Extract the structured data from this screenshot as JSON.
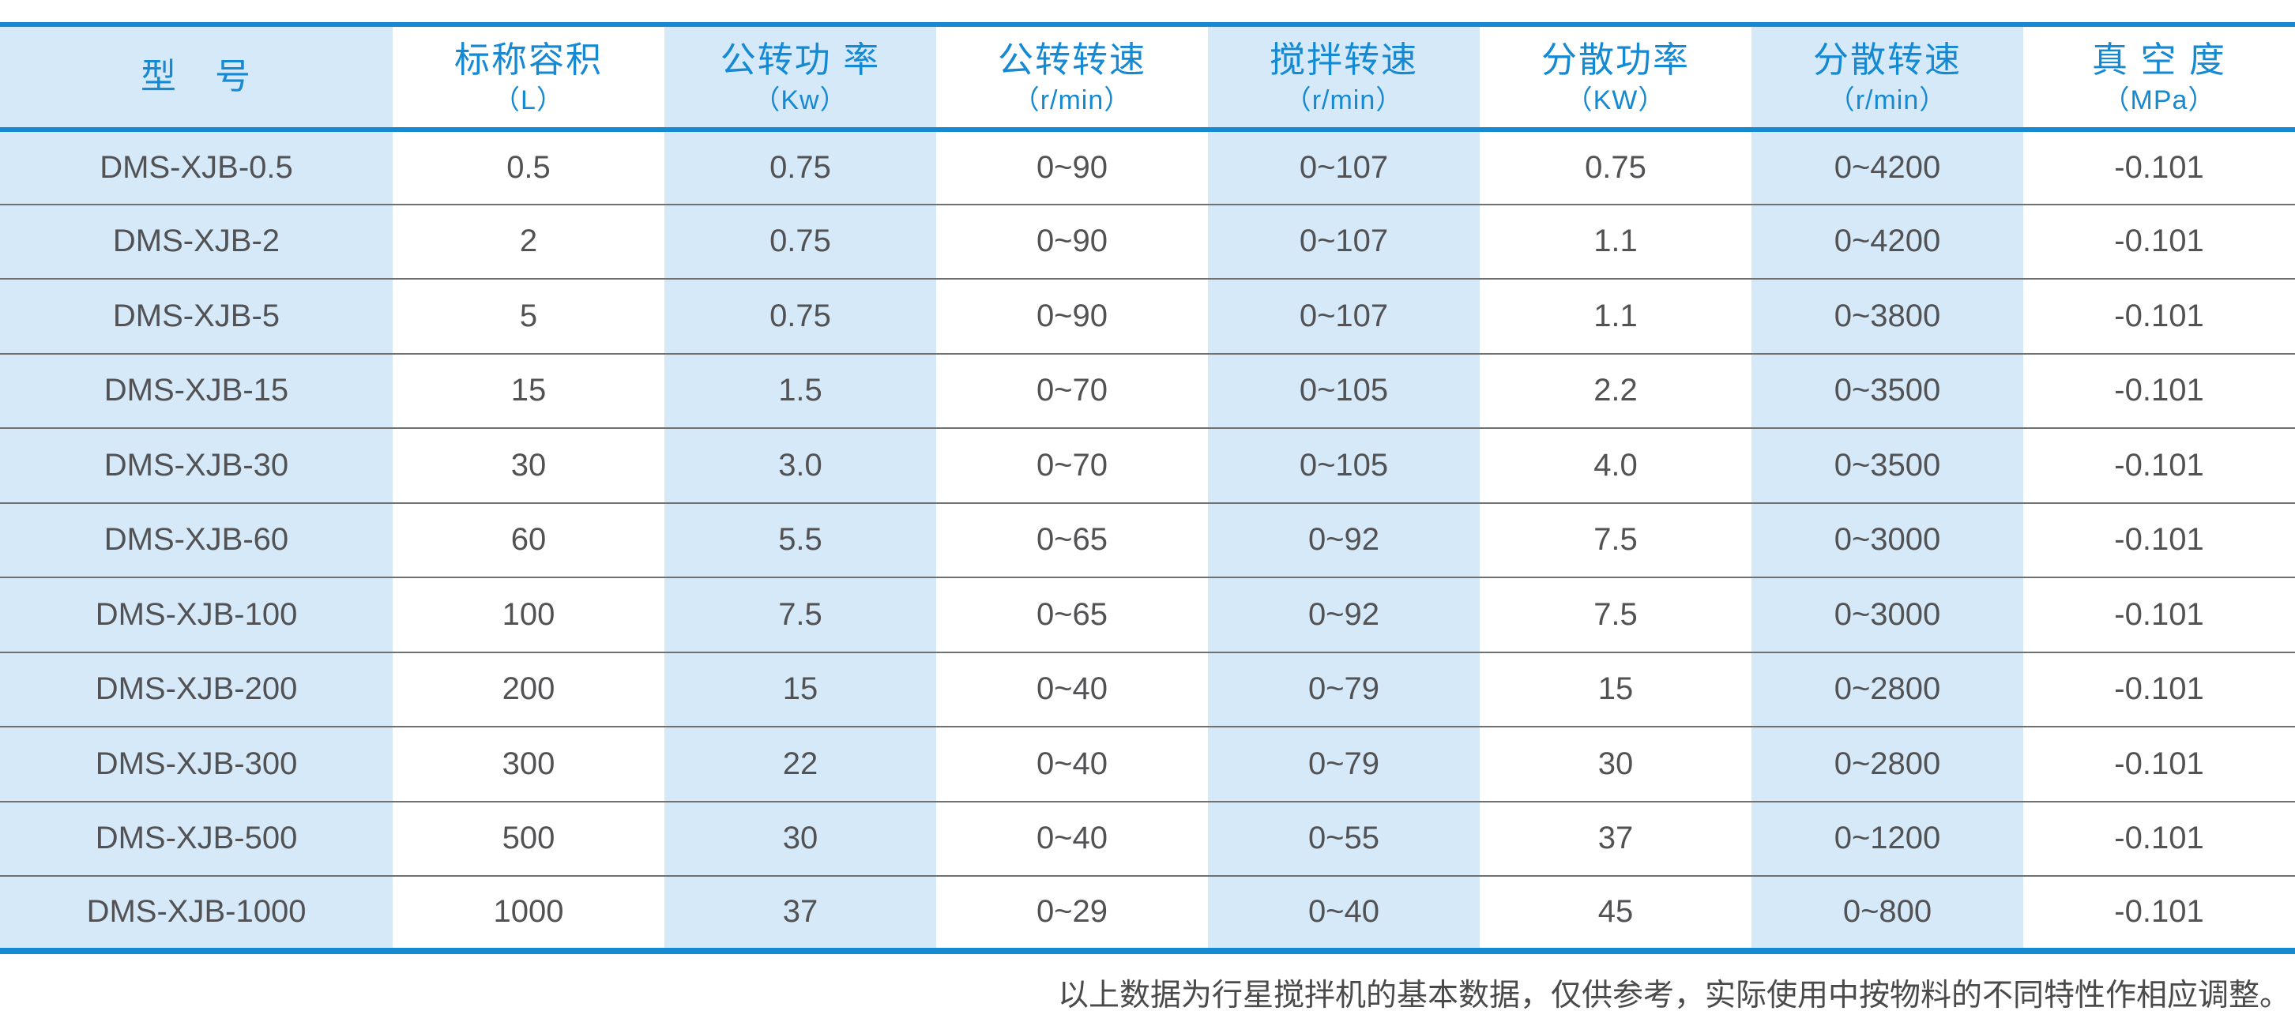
{
  "colors": {
    "accent": "#1589d2",
    "band": "#d5e9f8",
    "text": "#525254"
  },
  "table": {
    "columns": [
      {
        "title": "型　号",
        "unit": ""
      },
      {
        "title": "标称容积",
        "unit": "（L）"
      },
      {
        "title": "公转功 率",
        "unit": "（Kw）"
      },
      {
        "title": "公转转速",
        "unit": "（r/min）"
      },
      {
        "title": "搅拌转速",
        "unit": "（r/min）"
      },
      {
        "title": "分散功率",
        "unit": "（KW）"
      },
      {
        "title": "分散转速",
        "unit": "（r/min）"
      },
      {
        "title": "真 空 度",
        "unit": "（MPa）"
      }
    ],
    "rows": [
      [
        "DMS-XJB-0.5",
        "0.5",
        "0.75",
        "0~90",
        "0~107",
        "0.75",
        "0~4200",
        "-0.101"
      ],
      [
        "DMS-XJB-2",
        "2",
        "0.75",
        "0~90",
        "0~107",
        "1.1",
        "0~4200",
        "-0.101"
      ],
      [
        "DMS-XJB-5",
        "5",
        "0.75",
        "0~90",
        "0~107",
        "1.1",
        "0~3800",
        "-0.101"
      ],
      [
        "DMS-XJB-15",
        "15",
        "1.5",
        "0~70",
        "0~105",
        "2.2",
        "0~3500",
        "-0.101"
      ],
      [
        "DMS-XJB-30",
        "30",
        "3.0",
        "0~70",
        "0~105",
        "4.0",
        "0~3500",
        "-0.101"
      ],
      [
        "DMS-XJB-60",
        "60",
        "5.5",
        "0~65",
        "0~92",
        "7.5",
        "0~3000",
        "-0.101"
      ],
      [
        "DMS-XJB-100",
        "100",
        "7.5",
        "0~65",
        "0~92",
        "7.5",
        "0~3000",
        "-0.101"
      ],
      [
        "DMS-XJB-200",
        "200",
        "15",
        "0~40",
        "0~79",
        "15",
        "0~2800",
        "-0.101"
      ],
      [
        "DMS-XJB-300",
        "300",
        "22",
        "0~40",
        "0~79",
        "30",
        "0~2800",
        "-0.101"
      ],
      [
        "DMS-XJB-500",
        "500",
        "30",
        "0~40",
        "0~55",
        "37",
        "0~1200",
        "-0.101"
      ],
      [
        "DMS-XJB-1000",
        "1000",
        "37",
        "0~29",
        "0~40",
        "45",
        "0~800",
        "-0.101"
      ]
    ],
    "footnote": "以上数据为行星搅拌机的基本数据，仅供参考，实际使用中按物料的不同特性作相应调整。"
  }
}
